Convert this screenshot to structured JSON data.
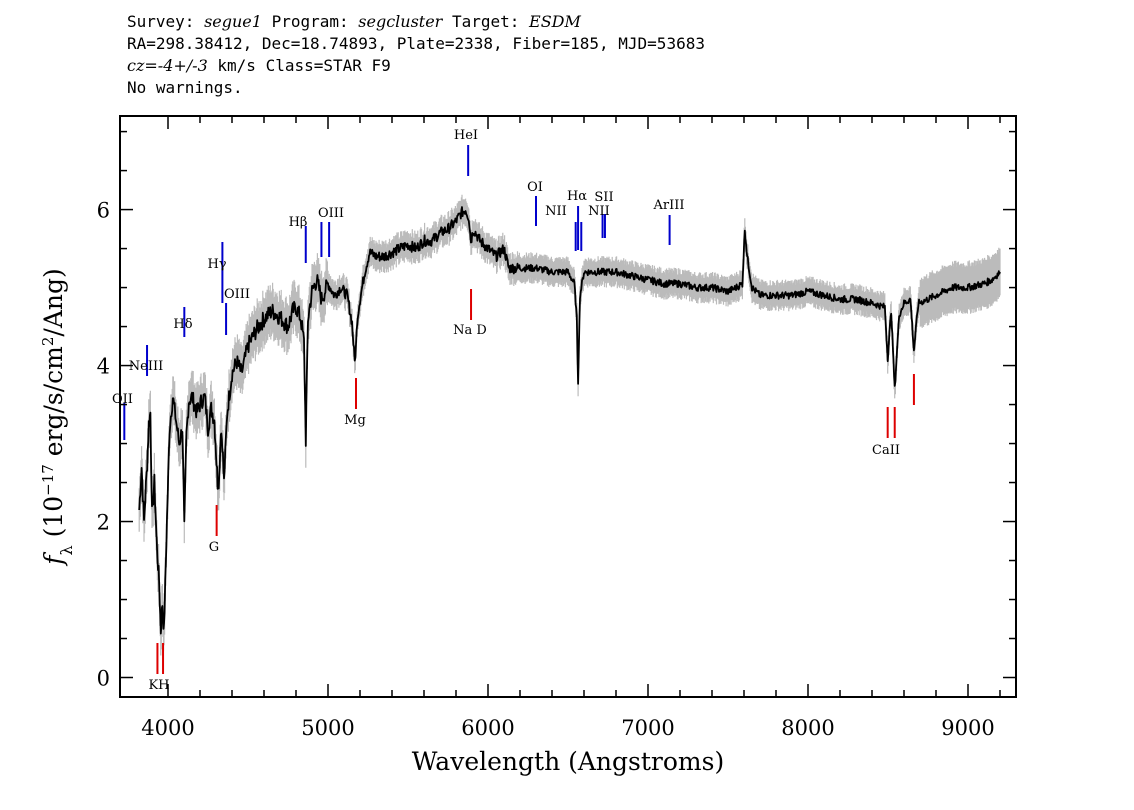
{
  "header": {
    "line1": [
      {
        "text": "Survey: ",
        "italic": false
      },
      {
        "text": "segue1",
        "italic": true
      },
      {
        "text": " Program: ",
        "italic": false
      },
      {
        "text": "segcluster",
        "italic": true
      },
      {
        "text": " Target: ",
        "italic": false
      },
      {
        "text": "ESDM",
        "italic": true
      }
    ],
    "line2": "RA=298.38412, Dec=18.74893, Plate=2338, Fiber=185, MJD=53683",
    "line3": [
      {
        "text": "cz=-4+/-3",
        "italic": true
      },
      {
        "text": " km/s Class=STAR F9",
        "italic": false
      }
    ],
    "line4": "No warnings."
  },
  "colors": {
    "spectrum": "#000000",
    "error_band": "#bbbbbb",
    "emission_lines": "#0000cc",
    "absorption_lines": "#dd0000",
    "axes": "#000000"
  },
  "chart_data": {
    "type": "line",
    "title": "",
    "xlabel": "Wavelength (Angstroms)",
    "ylabel": "f_λ (10^-17 erg/s/cm^2/Ang)",
    "xlim": [
      3700,
      9300
    ],
    "ylim": [
      -0.25,
      7.2
    ],
    "x_ticks": [
      4000,
      5000,
      6000,
      7000,
      8000,
      9000
    ],
    "y_ticks": [
      0,
      2,
      4,
      6
    ],
    "grid": false,
    "series": [
      {
        "x": [
          3820,
          3835,
          3850,
          3870,
          3880,
          3890,
          3900,
          3915,
          3930,
          3945,
          3955,
          3965,
          3975,
          3990,
          4010,
          4030,
          4050,
          4070,
          4090,
          4102,
          4115,
          4130,
          4150,
          4180,
          4210,
          4230,
          4250,
          4270,
          4290,
          4300,
          4310,
          4320,
          4330,
          4340,
          4350,
          4370,
          4400,
          4430,
          4460,
          4500,
          4550,
          4600,
          4650,
          4700,
          4750,
          4780,
          4800,
          4830,
          4850,
          4861,
          4875,
          4900,
          4930,
          4960,
          5000,
          5040,
          5080,
          5120,
          5150,
          5167,
          5175,
          5183,
          5200,
          5230,
          5260,
          5300,
          5350,
          5400,
          5450,
          5500,
          5550,
          5600,
          5650,
          5700,
          5750,
          5800,
          5830,
          5860,
          5880,
          5893,
          5910,
          5950,
          6000,
          6050,
          6100,
          6130,
          6200,
          6300,
          6400,
          6500,
          6540,
          6555,
          6563,
          6575,
          6600,
          6700,
          6800,
          6900,
          7000,
          7100,
          7200,
          7300,
          7400,
          7500,
          7550,
          7590,
          7605,
          7620,
          7650,
          7700,
          7800,
          7900,
          8000,
          8100,
          8200,
          8300,
          8400,
          8480,
          8498,
          8520,
          8542,
          8570,
          8600,
          8640,
          8662,
          8690,
          8750,
          8800,
          8850,
          8900,
          9000,
          9100,
          9150,
          9200
        ],
        "y": [
          2.15,
          2.7,
          2.0,
          2.75,
          3.25,
          3.4,
          2.1,
          2.5,
          1.7,
          1.2,
          0.6,
          0.95,
          0.6,
          1.75,
          3.2,
          3.6,
          3.3,
          3.0,
          3.2,
          1.9,
          3.1,
          3.55,
          3.6,
          3.4,
          3.55,
          3.6,
          3.2,
          3.45,
          3.3,
          2.9,
          2.5,
          2.55,
          3.2,
          3.0,
          2.5,
          3.4,
          3.9,
          4.05,
          3.9,
          4.25,
          4.45,
          4.6,
          4.7,
          4.62,
          4.5,
          4.7,
          4.75,
          4.6,
          4.3,
          3.05,
          4.6,
          4.95,
          5.1,
          4.85,
          5.05,
          4.9,
          5.0,
          4.9,
          4.55,
          4.05,
          4.25,
          4.6,
          4.85,
          5.2,
          5.45,
          5.4,
          5.4,
          5.45,
          5.5,
          5.55,
          5.5,
          5.6,
          5.6,
          5.7,
          5.75,
          5.85,
          5.95,
          6.0,
          5.9,
          5.6,
          5.75,
          5.6,
          5.5,
          5.4,
          5.5,
          5.25,
          5.25,
          5.25,
          5.2,
          5.2,
          5.05,
          4.6,
          3.8,
          4.9,
          5.2,
          5.2,
          5.2,
          5.15,
          5.1,
          5.05,
          5.05,
          5.0,
          5.0,
          4.95,
          5.0,
          5.05,
          5.75,
          5.4,
          5.0,
          4.9,
          4.9,
          4.9,
          4.95,
          4.9,
          4.85,
          4.85,
          4.8,
          4.75,
          4.1,
          4.7,
          3.7,
          4.65,
          4.8,
          4.85,
          4.2,
          4.8,
          4.85,
          4.9,
          4.95,
          5.0,
          5.0,
          5.05,
          5.1,
          5.2
        ]
      }
    ],
    "emission_lines": [
      {
        "label": "OII",
        "wavelength": 3727
      },
      {
        "label": "NeIII",
        "wavelength": 3869
      },
      {
        "label": "Hδ",
        "wavelength": 4102
      },
      {
        "label": "Hγ",
        "wavelength": 4340
      },
      {
        "label": "OIII",
        "wavelength": 4363
      },
      {
        "label": "Hβ",
        "wavelength": 4861
      },
      {
        "label": "OIII",
        "wavelength": 4959
      },
      {
        "label": "OIII",
        "wavelength": 5007
      },
      {
        "label": "HeI",
        "wavelength": 5876
      },
      {
        "label": "OI",
        "wavelength": 6300
      },
      {
        "label": "NII",
        "wavelength": 6548
      },
      {
        "label": "Hα",
        "wavelength": 6563
      },
      {
        "label": "NII",
        "wavelength": 6583
      },
      {
        "label": "SII",
        "wavelength": 6716
      },
      {
        "label": "SII",
        "wavelength": 6731
      },
      {
        "label": "ArIII",
        "wavelength": 7135
      }
    ],
    "absorption_lines": [
      {
        "label": "K",
        "wavelength": 3934
      },
      {
        "label": "H",
        "wavelength": 3969
      },
      {
        "label": "G",
        "wavelength": 4304
      },
      {
        "label": "Mg",
        "wavelength": 5175
      },
      {
        "label": "Na D",
        "wavelength": 5894
      },
      {
        "label": "CaII",
        "wavelength": 8498
      },
      {
        "label": "CaII",
        "wavelength": 8542
      },
      {
        "label": "CaII",
        "wavelength": 8662
      }
    ],
    "line_label_text": {
      "OII": "OII",
      "NeIII": "NeIII",
      "Hdelta": "Hδ",
      "Hgamma": "Hγ",
      "OIII_a": "OIII",
      "Hbeta": "Hβ",
      "OIII_b": "OIII",
      "HeI": "HeI",
      "OI": "OI",
      "NII_a": "NII",
      "Halpha": "Hα",
      "SII": "SII",
      "NII_b": "NII",
      "ArIII": "ArIII",
      "KH": "KH",
      "G": "G",
      "Mg": "Mg",
      "NaD": "Na  D",
      "CaII": "CaII"
    }
  }
}
